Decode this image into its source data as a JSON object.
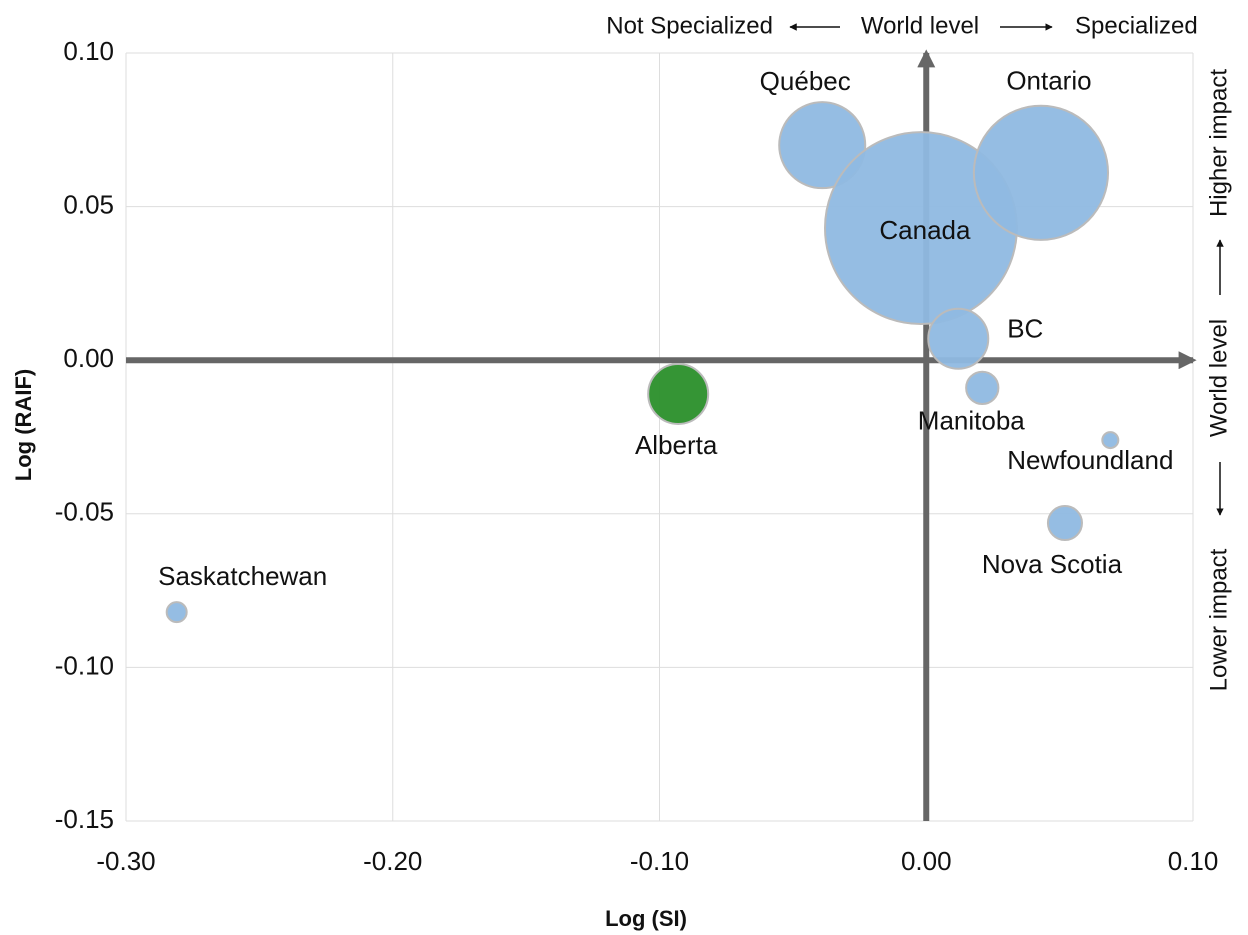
{
  "chart_data": {
    "type": "bubble",
    "labels": [
      "Québec",
      "Canada",
      "Ontario",
      "BC",
      "Manitoba",
      "Newfoundland",
      "Nova Scotia",
      "Alberta",
      "Saskatchewan"
    ],
    "x": [
      -0.039,
      -0.002,
      0.043,
      0.012,
      0.021,
      0.069,
      0.052,
      -0.093,
      -0.281
    ],
    "values": [
      0.07,
      0.043,
      0.061,
      0.007,
      -0.009,
      -0.026,
      -0.053,
      -0.011,
      -0.082
    ],
    "sizes": [
      1850,
      9200,
      4500,
      900,
      260,
      64,
      290,
      900,
      100
    ],
    "colors": [
      "#8fb9e2",
      "#8fb9e2",
      "#8fb9e2",
      "#8fb9e2",
      "#8fb9e2",
      "#8fb9e2",
      "#8fb9e2",
      "#2a8f2a",
      "#8fb9e2"
    ],
    "xlabel": "Log (SI)",
    "ylabel": "Log (RAIF)",
    "xlim": [
      -0.3,
      0.1
    ],
    "ylim": [
      -0.15,
      0.1
    ],
    "xticks": [
      {
        "value": -0.3,
        "label": "-0.30"
      },
      {
        "value": -0.2,
        "label": "-0.20"
      },
      {
        "value": -0.1,
        "label": "-0.10"
      },
      {
        "value": 0.0,
        "label": "0.00"
      },
      {
        "value": 0.1,
        "label": "0.10"
      }
    ],
    "yticks": [
      {
        "value": -0.15,
        "label": "-0.15"
      },
      {
        "value": -0.1,
        "label": "-0.10"
      },
      {
        "value": -0.05,
        "label": "-0.05"
      },
      {
        "value": 0.0,
        "label": "0.00"
      },
      {
        "value": 0.05,
        "label": "0.05"
      },
      {
        "value": 0.1,
        "label": "0.10"
      }
    ],
    "grid": true,
    "annotations": {
      "top": [
        "Not Specialized",
        "World level",
        "Specialized"
      ],
      "right": [
        "Lower impact",
        "World level",
        "Higher impact"
      ]
    }
  }
}
